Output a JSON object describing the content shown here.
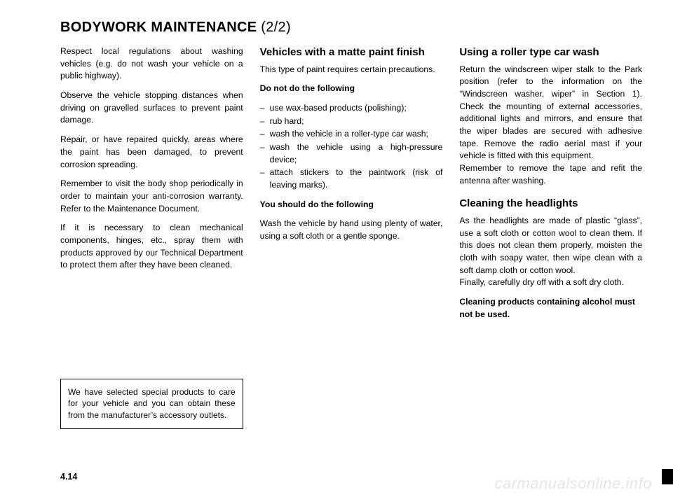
{
  "title_main": "BODYWORK MAINTENANCE ",
  "title_frac": "(2/2)",
  "col1": {
    "p1": "Respect local regulations about wash­ing vehicles (e.g. do not wash your ve­hicle on a public highway).",
    "p2": "Observe the vehicle stopping distances when driving on gravelled surfaces to prevent paint damage.",
    "p3": "Repair, or have repaired quickly, areas where the paint has been damaged, to prevent corrosion spreading.",
    "p4": "Remember to visit the body shop pe­riodically in order to maintain your anti-corrosion warranty. Refer to the Maintenance Document.",
    "p5": "If it is necessary to clean mechani­cal components, hinges, etc., spray them with products approved by our Technical Department to protect them after they have been cleaned.",
    "note": "We have selected special products to care for your vehicle and you can obtain these from the manufactur­er’s accessory outlets."
  },
  "col2": {
    "h1": "Vehicles with a matte paint finish",
    "p1": "This type of paint requires certain pre­cautions.",
    "h2": "Do not do the following",
    "li1": "use wax-based products (polishing);",
    "li2": "rub hard;",
    "li3": "wash the vehicle in a roller-type car wash;",
    "li4": "wash the vehicle using a high-pres­sure device;",
    "li5": "attach stickers to the paintwork (risk of leaving marks).",
    "h3": "You should do the following",
    "p2": "Wash the vehicle by hand using plenty of water, using a soft cloth or a gentle sponge."
  },
  "col3": {
    "h1": "Using a roller type car wash",
    "p1": "Return the windscreen wiper stalk to the Park position (refer to the informa­tion on the “Windscreen washer, wiper” in Section 1). Check the mounting of external accessories, additional lights and mirrors, and ensure that the wiper blades are secured with adhesive tape. Remove the radio aerial mast if your vehicle is fitted with this equipment.",
    "p1b": "Remember to remove the tape and refit the antenna after washing.",
    "h2": "Cleaning the headlights",
    "p2": "As the headlights are made of plastic “glass”, use a soft cloth or cotton wool to clean them. If this does not clean them properly, moisten the cloth with soapy water, then wipe clean with a soft damp cloth or cotton wool.",
    "p2b": "Finally, carefully dry off with a soft dry cloth.",
    "p3": "Cleaning products containing alco­hol must not be used."
  },
  "page_number": "4.14",
  "watermark": "carmanualsonline.info"
}
